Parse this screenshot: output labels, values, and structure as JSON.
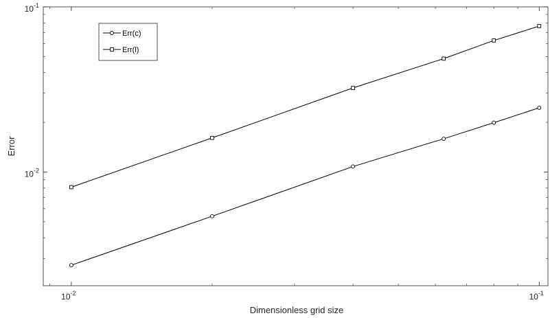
{
  "chart_data": {
    "type": "line",
    "xscale": "log",
    "yscale": "log",
    "xlim": [
      0.00871,
      0.1044
    ],
    "ylim": [
      0.00205,
      0.1
    ],
    "xticks": [
      {
        "value": 0.01,
        "base": "10",
        "exp": "-2"
      },
      {
        "value": 0.1,
        "base": "10",
        "exp": "-1"
      }
    ],
    "yticks": [
      {
        "value": 0.01,
        "base": "10",
        "exp": "-2"
      },
      {
        "value": 0.1,
        "base": "10",
        "exp": "-1"
      }
    ],
    "xlabel": "Dimensionless grid size",
    "ylabel": "Error",
    "grid": false,
    "legend_position": "top-left",
    "series": [
      {
        "name": "Err(c)",
        "marker": "circle",
        "color": "#000000",
        "x": [
          0.01,
          0.02,
          0.04,
          0.0625,
          0.08,
          0.1
        ],
        "y": [
          0.00273,
          0.0054,
          0.0108,
          0.0159,
          0.0199,
          0.0245
        ]
      },
      {
        "name": "Err(l)",
        "marker": "square",
        "color": "#000000",
        "x": [
          0.01,
          0.02,
          0.04,
          0.0625,
          0.08,
          0.1
        ],
        "y": [
          0.0081,
          0.0161,
          0.0323,
          0.0486,
          0.0626,
          0.0765
        ]
      }
    ]
  }
}
